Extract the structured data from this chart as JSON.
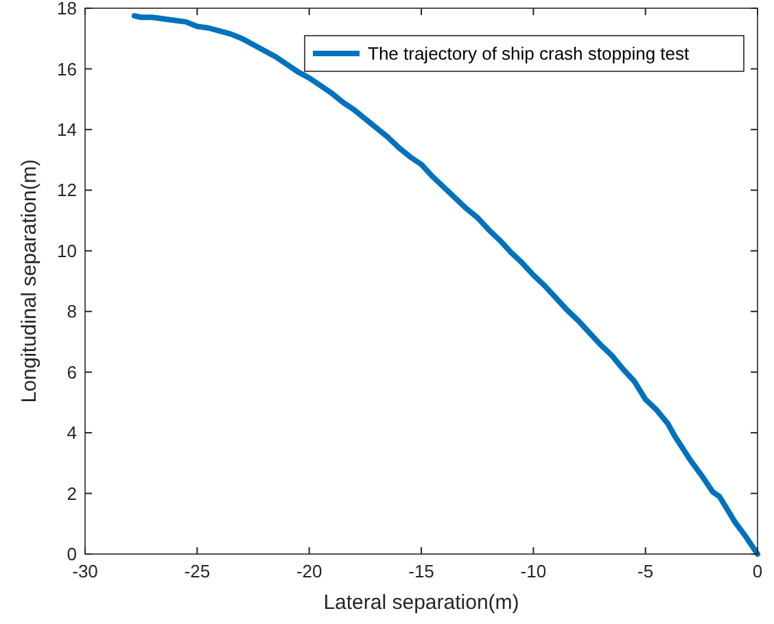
{
  "chart_data": {
    "type": "line",
    "xlabel": "Lateral separation(m)",
    "ylabel": "Longitudinal separation(m)",
    "xlim": [
      -30,
      0
    ],
    "xticks": [
      -30,
      -25,
      -20,
      -15,
      -10,
      -5,
      0
    ],
    "ylim": [
      0,
      18
    ],
    "yticks": [
      0,
      2,
      4,
      6,
      8,
      10,
      12,
      14,
      16,
      18
    ],
    "grid": false,
    "legend": "top right",
    "line_style": "solid",
    "marker": "none",
    "series": [
      {
        "name": "The trajectory of ship crash stopping test",
        "color": "#0072bd",
        "x": [
          -27.8,
          -27.5,
          -27,
          -26.5,
          -26,
          -25.5,
          -25,
          -24.5,
          -24,
          -23.5,
          -23,
          -22.5,
          -22,
          -21.5,
          -21,
          -20.5,
          -20,
          -19.5,
          -19,
          -18.5,
          -18,
          -17.5,
          -17,
          -16.5,
          -16,
          -15.5,
          -15,
          -14.5,
          -14,
          -13.5,
          -13,
          -12.5,
          -12,
          -11.5,
          -11,
          -10.5,
          -10,
          -9.5,
          -9,
          -8.5,
          -8,
          -7.5,
          -7,
          -6.5,
          -6,
          -5.5,
          -5,
          -4.5,
          -4,
          -3.7,
          -3,
          -2.5,
          -2,
          -1.7,
          -1,
          -0.5,
          0
        ],
        "values": [
          17.75,
          17.7,
          17.7,
          17.65,
          17.6,
          17.55,
          17.4,
          17.35,
          17.25,
          17.15,
          17.0,
          16.8,
          16.6,
          16.4,
          16.15,
          15.9,
          15.7,
          15.45,
          15.2,
          14.9,
          14.65,
          14.35,
          14.05,
          13.75,
          13.4,
          13.1,
          12.85,
          12.45,
          12.1,
          11.75,
          11.4,
          11.1,
          10.7,
          10.35,
          9.95,
          9.6,
          9.2,
          8.85,
          8.45,
          8.05,
          7.7,
          7.3,
          6.9,
          6.55,
          6.1,
          5.7,
          5.1,
          4.75,
          4.3,
          3.9,
          3.1,
          2.6,
          2.05,
          1.9,
          1.05,
          0.55,
          0
        ]
      }
    ]
  }
}
